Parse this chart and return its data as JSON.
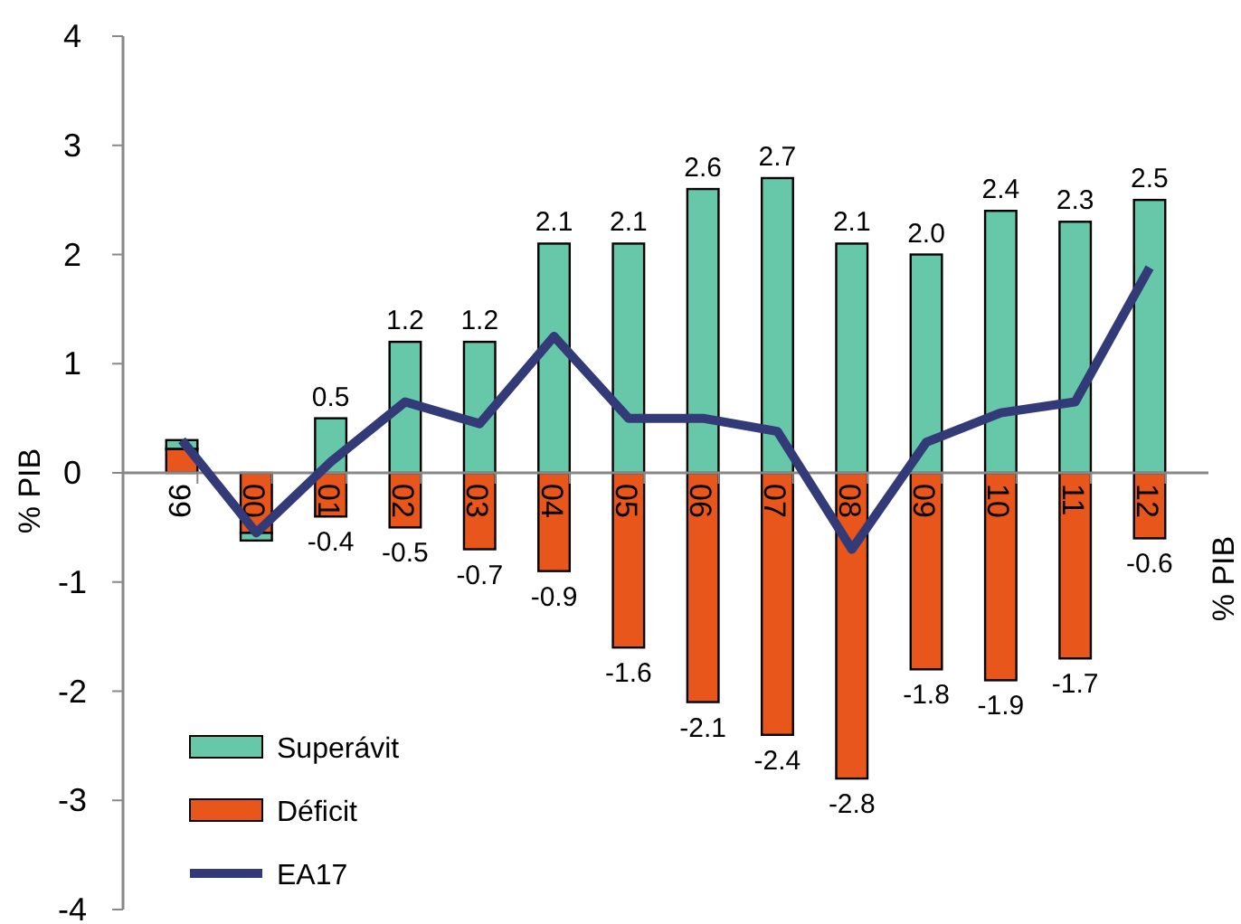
{
  "chart_data": {
    "type": "bar",
    "stacked": true,
    "ylabel": "% PIB",
    "annotations": [
      "% PIB"
    ],
    "categories": [
      "99",
      "00",
      "01",
      "02",
      "03",
      "04",
      "05",
      "06",
      "07",
      "08",
      "09",
      "10",
      "11",
      "12"
    ],
    "series": [
      {
        "name": "Déficit",
        "color": "#e8561c",
        "values": [
          0.22,
          -0.55,
          -0.4,
          -0.5,
          -0.7,
          -0.9,
          -1.6,
          -2.1,
          -2.4,
          -2.8,
          -1.8,
          -1.9,
          -1.7,
          -0.6
        ],
        "value_labels": [
          null,
          null,
          "-0.4",
          "-0.5",
          "-0.7",
          "-0.9",
          "-1.6",
          "-2.1",
          "-2.4",
          "-2.8",
          "-1.8",
          "-1.9",
          "-1.7",
          "-0.6"
        ]
      },
      {
        "name": "Superávit",
        "color": "#66c8a8",
        "values": [
          0.08,
          -0.07,
          0.5,
          1.2,
          1.2,
          2.1,
          2.1,
          2.6,
          2.7,
          2.1,
          2.0,
          2.4,
          2.3,
          2.5
        ],
        "value_labels": [
          null,
          null,
          "0.5",
          "1.2",
          "1.2",
          "2.1",
          "2.1",
          "2.6",
          "2.7",
          "2.1",
          "2.0",
          "2.4",
          "2.3",
          "2.5"
        ]
      },
      {
        "name": "EA17",
        "type": "line",
        "color": "#333a78",
        "values": [
          0.3,
          -0.55,
          0.1,
          0.65,
          0.45,
          1.25,
          0.5,
          0.5,
          0.38,
          -0.7,
          0.28,
          0.55,
          0.65,
          1.88
        ]
      }
    ],
    "ylim": [
      -4,
      4
    ],
    "yticks": [
      -4,
      -3,
      -2,
      -1,
      0,
      1,
      2,
      3,
      4
    ],
    "grid": false,
    "legend": "bottom left",
    "marker": "none"
  }
}
